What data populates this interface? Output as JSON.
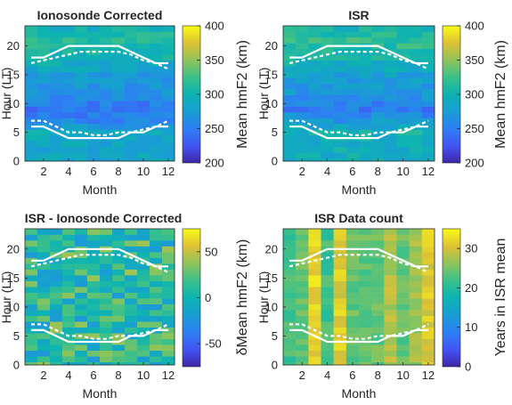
{
  "chart_data": [
    {
      "type": "heatmap",
      "title": "Ionosonde Corrected",
      "xlabel": "Month",
      "ylabel": "Hour (LT)",
      "colorbar_label": "Mean hmF2 (km)",
      "x": [
        1,
        2,
        3,
        4,
        5,
        6,
        7,
        8,
        9,
        10,
        11,
        12
      ],
      "xticks": [
        2,
        4,
        6,
        8,
        10,
        12
      ],
      "yticks": [
        0,
        5,
        10,
        15,
        20
      ],
      "ylim": [
        0,
        23.5
      ],
      "clim": [
        200,
        400
      ],
      "cbar_ticks": [
        200,
        250,
        300,
        350,
        400
      ],
      "z_profile": {
        "anchors_hour": [
          0,
          3,
          5,
          7,
          9,
          12,
          15,
          18,
          21,
          23
        ],
        "anchors_value": [
          285,
          285,
          290,
          255,
          245,
          265,
          275,
          300,
          315,
          300
        ]
      },
      "lines": {
        "sunrise_solid": [
          6,
          6,
          5,
          4,
          4,
          4,
          4,
          4,
          5,
          5,
          6,
          6
        ],
        "sunrise_dashed": [
          7,
          7,
          6,
          5,
          5,
          4.5,
          4.5,
          5,
          5,
          5.5,
          6,
          7
        ],
        "sunset_solid": [
          18,
          18,
          19,
          20,
          20,
          20,
          20,
          20,
          19,
          18,
          17,
          17
        ],
        "sunset_dashed": [
          17,
          17.5,
          18,
          18.5,
          19,
          19,
          19,
          19,
          18.5,
          17.5,
          17,
          16
        ]
      }
    },
    {
      "type": "heatmap",
      "title": "ISR",
      "xlabel": "Month",
      "ylabel": "Hour (LT)",
      "colorbar_label": "Mean hmF2 (km)",
      "x": [
        1,
        2,
        3,
        4,
        5,
        6,
        7,
        8,
        9,
        10,
        11,
        12
      ],
      "xticks": [
        2,
        4,
        6,
        8,
        10,
        12
      ],
      "yticks": [
        0,
        5,
        10,
        15,
        20
      ],
      "ylim": [
        0,
        23.5
      ],
      "clim": [
        200,
        400
      ],
      "cbar_ticks": [
        200,
        250,
        300,
        350,
        400
      ],
      "z_profile": {
        "anchors_hour": [
          0,
          3,
          5,
          7,
          9,
          12,
          15,
          18,
          21,
          23
        ],
        "anchors_value": [
          290,
          295,
          300,
          270,
          250,
          270,
          280,
          305,
          320,
          305
        ]
      }
    },
    {
      "type": "heatmap",
      "title": "ISR - Ionosonde Corrected",
      "xlabel": "Month",
      "ylabel": "Hour (LT)",
      "colorbar_label": "δMean hmF2 (km)",
      "x": [
        1,
        2,
        3,
        4,
        5,
        6,
        7,
        8,
        9,
        10,
        11,
        12
      ],
      "xticks": [
        2,
        4,
        6,
        8,
        10,
        12
      ],
      "yticks": [
        0,
        5,
        10,
        15,
        20
      ],
      "ylim": [
        0,
        23.5
      ],
      "clim": [
        -75,
        75
      ],
      "cbar_ticks": [
        -50,
        0,
        50
      ],
      "z_profile": {
        "anchors_hour": [
          0,
          23
        ],
        "anchors_value": [
          10,
          10
        ]
      }
    },
    {
      "type": "heatmap",
      "title": "ISR Data count",
      "xlabel": "Month",
      "ylabel": "Hour (LT)",
      "colorbar_label": "Years in ISR mean",
      "x": [
        1,
        2,
        3,
        4,
        5,
        6,
        7,
        8,
        9,
        10,
        11,
        12
      ],
      "xticks": [
        2,
        4,
        6,
        8,
        10,
        12
      ],
      "yticks": [
        0,
        5,
        10,
        15,
        20
      ],
      "ylim": [
        0,
        23.5
      ],
      "clim": [
        0,
        35
      ],
      "cbar_ticks": [
        0,
        10,
        20,
        30
      ],
      "month_values": [
        22,
        24,
        32,
        22,
        31,
        24,
        24,
        24,
        28,
        24,
        27,
        31
      ]
    }
  ]
}
